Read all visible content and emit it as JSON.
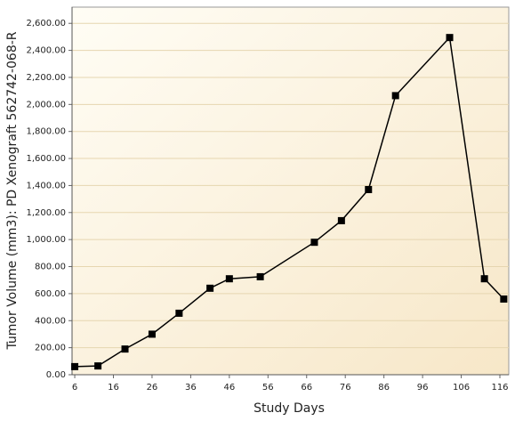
{
  "chart_data": {
    "type": "line",
    "xlabel": "Study Days",
    "ylabel": "Tumor Volume (mm3): PD Xenograft 562742-068-R",
    "x": [
      6,
      12,
      19,
      26,
      33,
      41,
      46,
      54,
      68,
      75,
      82,
      89,
      103,
      112,
      117
    ],
    "series": [
      {
        "name": "Tumor Volume",
        "color": "#000000",
        "values": [
          60,
          65,
          190,
          300,
          455,
          640,
          710,
          725,
          980,
          1140,
          1370,
          2065,
          2495,
          710,
          560
        ]
      }
    ],
    "xlim": [
      5.3,
      118.3
    ],
    "xticks": [
      6,
      16,
      26,
      36,
      46,
      56,
      66,
      76,
      86,
      96,
      106,
      116
    ],
    "ylim": [
      0,
      2720
    ],
    "yticks": [
      {
        "value": 0,
        "label": "0.00"
      },
      {
        "value": 200,
        "label": "200.00"
      },
      {
        "value": 400,
        "label": "400.00"
      },
      {
        "value": 600,
        "label": "600.00"
      },
      {
        "value": 800,
        "label": "800.00"
      },
      {
        "value": 1000,
        "label": "1,000.00"
      },
      {
        "value": 1200,
        "label": "1,200.00"
      },
      {
        "value": 1400,
        "label": "1,400.00"
      },
      {
        "value": 1600,
        "label": "1,600.00"
      },
      {
        "value": 1800,
        "label": "1,800.00"
      },
      {
        "value": 2000,
        "label": "2,000.00"
      },
      {
        "value": 2200,
        "label": "2,200.00"
      },
      {
        "value": 2400,
        "label": "2,400.00"
      },
      {
        "value": 2600,
        "label": "2,600.00"
      }
    ],
    "grid": true
  }
}
